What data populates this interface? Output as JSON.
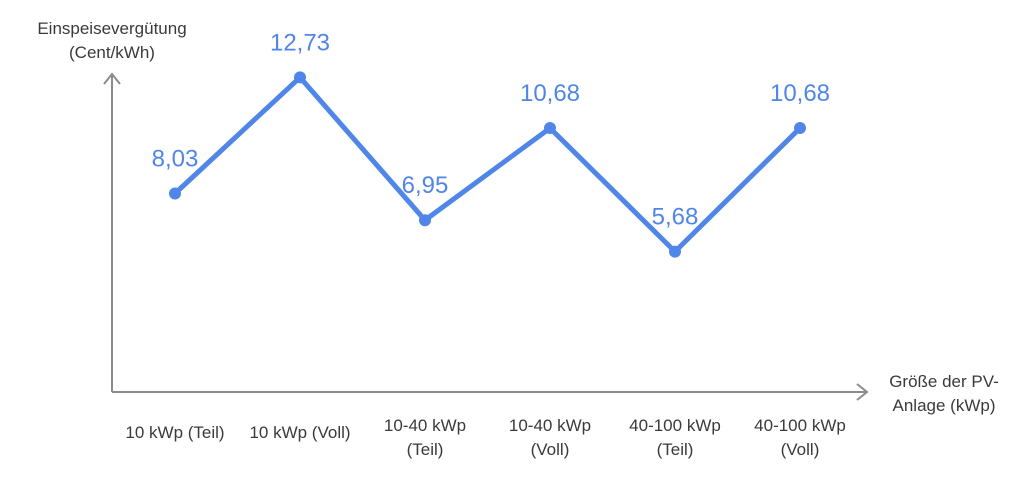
{
  "chart_data": {
    "type": "line",
    "title": "",
    "ylabel": [
      "Einspeisevergütung",
      "(Cent/kWh)"
    ],
    "xlabel": [
      "Größe der PV-",
      "Anlage (kWp)"
    ],
    "categories": [
      [
        "10 kWp (Teil)"
      ],
      [
        "10 kWp (Voll)"
      ],
      [
        "10-40 kWp",
        "(Teil)"
      ],
      [
        "10-40 kWp",
        "(Voll)"
      ],
      [
        "40-100 kWp",
        "(Teil)"
      ],
      [
        "40-100 kWp",
        "(Voll)"
      ]
    ],
    "values": [
      8.03,
      12.73,
      6.95,
      10.68,
      5.68,
      10.68
    ],
    "value_labels": [
      "8,03",
      "12,73",
      "6,95",
      "10,68",
      "5,68",
      "10,68"
    ],
    "ylim": [
      0,
      14
    ],
    "grid": false,
    "line_color": "#4f86e8",
    "axis_color": "#8c8c8c"
  }
}
